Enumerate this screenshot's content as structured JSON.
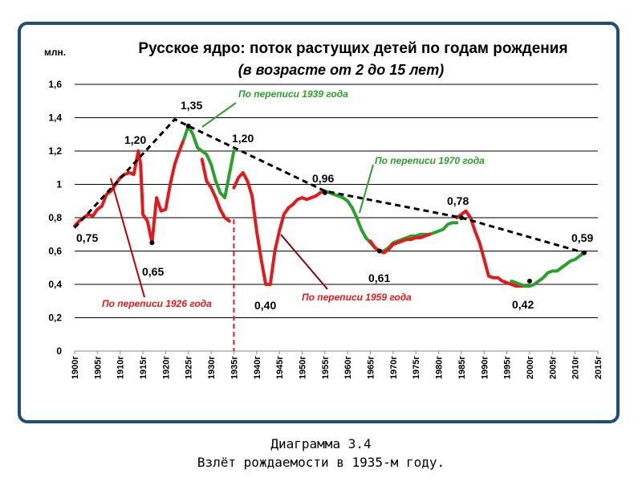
{
  "chart_data": {
    "type": "line",
    "title": "Русское ядро: поток растущих детей по годам рождения",
    "subtitle": "(в возрасте от 2 до 15 лет)",
    "ylabel": "млн.",
    "xlim": [
      1900,
      2015
    ],
    "ylim": [
      0,
      1.6
    ],
    "yticks": [
      "0",
      "0,2",
      "0,4",
      "0,6",
      "0,8",
      "1",
      "1,2",
      "1,4",
      "1,6"
    ],
    "xticks": [
      "1900г",
      "1905г",
      "1910г",
      "1915г",
      "1920г",
      "1925г",
      "1930г",
      "1935г",
      "1940г",
      "1945г",
      "1950г",
      "1955г",
      "1960г",
      "1965г",
      "1970г",
      "1975г",
      "1980г",
      "1985г",
      "1990г",
      "1995г",
      "2000г",
      "2005г",
      "2010г",
      "2015г"
    ],
    "grid": true,
    "series": [
      {
        "name": "По переписи 1926 года",
        "color": "#e31a1c",
        "x": [
          1900,
          1901,
          1902,
          1903,
          1904,
          1905,
          1906,
          1907,
          1908,
          1909,
          1910,
          1911,
          1912,
          1913,
          1914,
          1914.5,
          1915,
          1916,
          1917,
          1918,
          1919,
          1920,
          1921,
          1922,
          1923,
          1924
        ],
        "y": [
          0.75,
          0.78,
          0.8,
          0.82,
          0.81,
          0.85,
          0.87,
          0.94,
          0.96,
          1.0,
          1.04,
          1.06,
          1.07,
          1.06,
          1.2,
          1.12,
          0.82,
          0.78,
          0.65,
          0.92,
          0.84,
          0.85,
          1.0,
          1.12,
          1.2,
          1.27
        ]
      },
      {
        "name": "По переписи 1939 года",
        "color": "#2ca02c",
        "x": [
          1924,
          1925,
          1926,
          1927,
          1928,
          1929,
          1930,
          1931,
          1932,
          1933,
          1934,
          1935
        ],
        "y": [
          1.27,
          1.35,
          1.3,
          1.22,
          1.2,
          1.18,
          1.12,
          1.02,
          0.95,
          0.92,
          1.06,
          1.2
        ]
      },
      {
        "name": "",
        "color": "#e31a1c",
        "x": [
          1928,
          1929,
          1930,
          1931,
          1932,
          1933,
          1934
        ],
        "y": [
          1.15,
          1.02,
          0.98,
          0.92,
          0.85,
          0.8,
          0.78
        ]
      },
      {
        "name": "По переписи 1959 года",
        "color": "#e31a1c",
        "x": [
          1935,
          1936,
          1937,
          1938,
          1939,
          1940,
          1941,
          1942,
          1943,
          1944,
          1945,
          1946,
          1947,
          1948,
          1949,
          1950,
          1951,
          1952,
          1953,
          1954,
          1955
        ],
        "y": [
          0.98,
          1.04,
          1.07,
          1.02,
          0.93,
          0.72,
          0.55,
          0.4,
          0.4,
          0.6,
          0.72,
          0.82,
          0.86,
          0.88,
          0.91,
          0.92,
          0.91,
          0.92,
          0.93,
          0.95,
          0.96
        ]
      },
      {
        "name": "По переписи 1970 года",
        "color": "#2ca02c",
        "x": [
          1955,
          1956,
          1957,
          1958,
          1959,
          1960,
          1961,
          1962,
          1963,
          1964,
          1965,
          1966,
          1967,
          1968,
          1969,
          1970,
          1971,
          1972,
          1973,
          1974,
          1975,
          1976,
          1977,
          1978,
          1979,
          1980,
          1981,
          1982,
          1983,
          1984
        ],
        "y": [
          0.96,
          0.95,
          0.94,
          0.93,
          0.92,
          0.9,
          0.86,
          0.8,
          0.73,
          0.68,
          0.65,
          0.62,
          0.6,
          0.6,
          0.62,
          0.65,
          0.66,
          0.67,
          0.68,
          0.69,
          0.69,
          0.7,
          0.7,
          0.7,
          0.71,
          0.72,
          0.73,
          0.76,
          0.77,
          0.77
        ]
      },
      {
        "name": "",
        "color": "#e31a1c",
        "x": [
          1965,
          1966,
          1967,
          1968,
          1969,
          1970,
          1971,
          1972,
          1973,
          1974,
          1975,
          1976,
          1977,
          1978
        ],
        "y": [
          0.66,
          0.62,
          0.6,
          0.59,
          0.61,
          0.64,
          0.65,
          0.66,
          0.67,
          0.67,
          0.68,
          0.68,
          0.69,
          0.7
        ]
      },
      {
        "name": "",
        "color": "#e31a1c",
        "x": [
          1984,
          1985,
          1986,
          1987,
          1988,
          1989,
          1990,
          1991,
          1992,
          1993,
          1994,
          1995,
          1996,
          1997,
          1998,
          1999,
          2000
        ],
        "y": [
          0.8,
          0.82,
          0.84,
          0.8,
          0.72,
          0.65,
          0.55,
          0.45,
          0.44,
          0.44,
          0.42,
          0.41,
          0.4,
          0.39,
          0.39,
          0.39,
          0.39
        ]
      },
      {
        "name": "",
        "color": "#2ca02c",
        "x": [
          1996,
          1997,
          1998,
          1999,
          2000,
          2001,
          2002,
          2003,
          2004,
          2005,
          2006,
          2007,
          2008,
          2009,
          2010,
          2011,
          2012
        ],
        "y": [
          0.42,
          0.41,
          0.4,
          0.39,
          0.39,
          0.4,
          0.42,
          0.44,
          0.47,
          0.48,
          0.48,
          0.5,
          0.52,
          0.54,
          0.55,
          0.57,
          0.59
        ]
      }
    ],
    "trend": {
      "x": [
        1900,
        1922,
        1955,
        1985,
        2012
      ],
      "y": [
        0.74,
        1.39,
        0.96,
        0.8,
        0.59
      ]
    },
    "marker_line_x": 1935,
    "dots": [
      {
        "x": 1917,
        "y": 0.65
      },
      {
        "x": 1925,
        "y": 1.35
      },
      {
        "x": 1955,
        "y": 0.95
      },
      {
        "x": 1967,
        "y": 0.6
      },
      {
        "x": 1985,
        "y": 0.8
      },
      {
        "x": 2000,
        "y": 0.42
      },
      {
        "x": 2012,
        "y": 0.59
      }
    ],
    "annotations": {
      "val_075": "0,75",
      "val_120a": "1,20",
      "val_135": "1,35",
      "val_120b": "1,20",
      "val_065": "0,65",
      "val_040": "0,40",
      "val_096": "0,96",
      "val_061": "0,61",
      "val_078": "0,78",
      "val_042": "0,42",
      "val_059": "0,59",
      "census_1939": "По переписи 1939 года",
      "census_1926": "По переписи 1926 года",
      "census_1959": "По переписи 1959 года",
      "census_1970": "По переписи 1970 года"
    }
  },
  "caption": {
    "line1": "Диаграмма 3.4",
    "line2": "Взлёт рождаемости в 1935-м году."
  }
}
